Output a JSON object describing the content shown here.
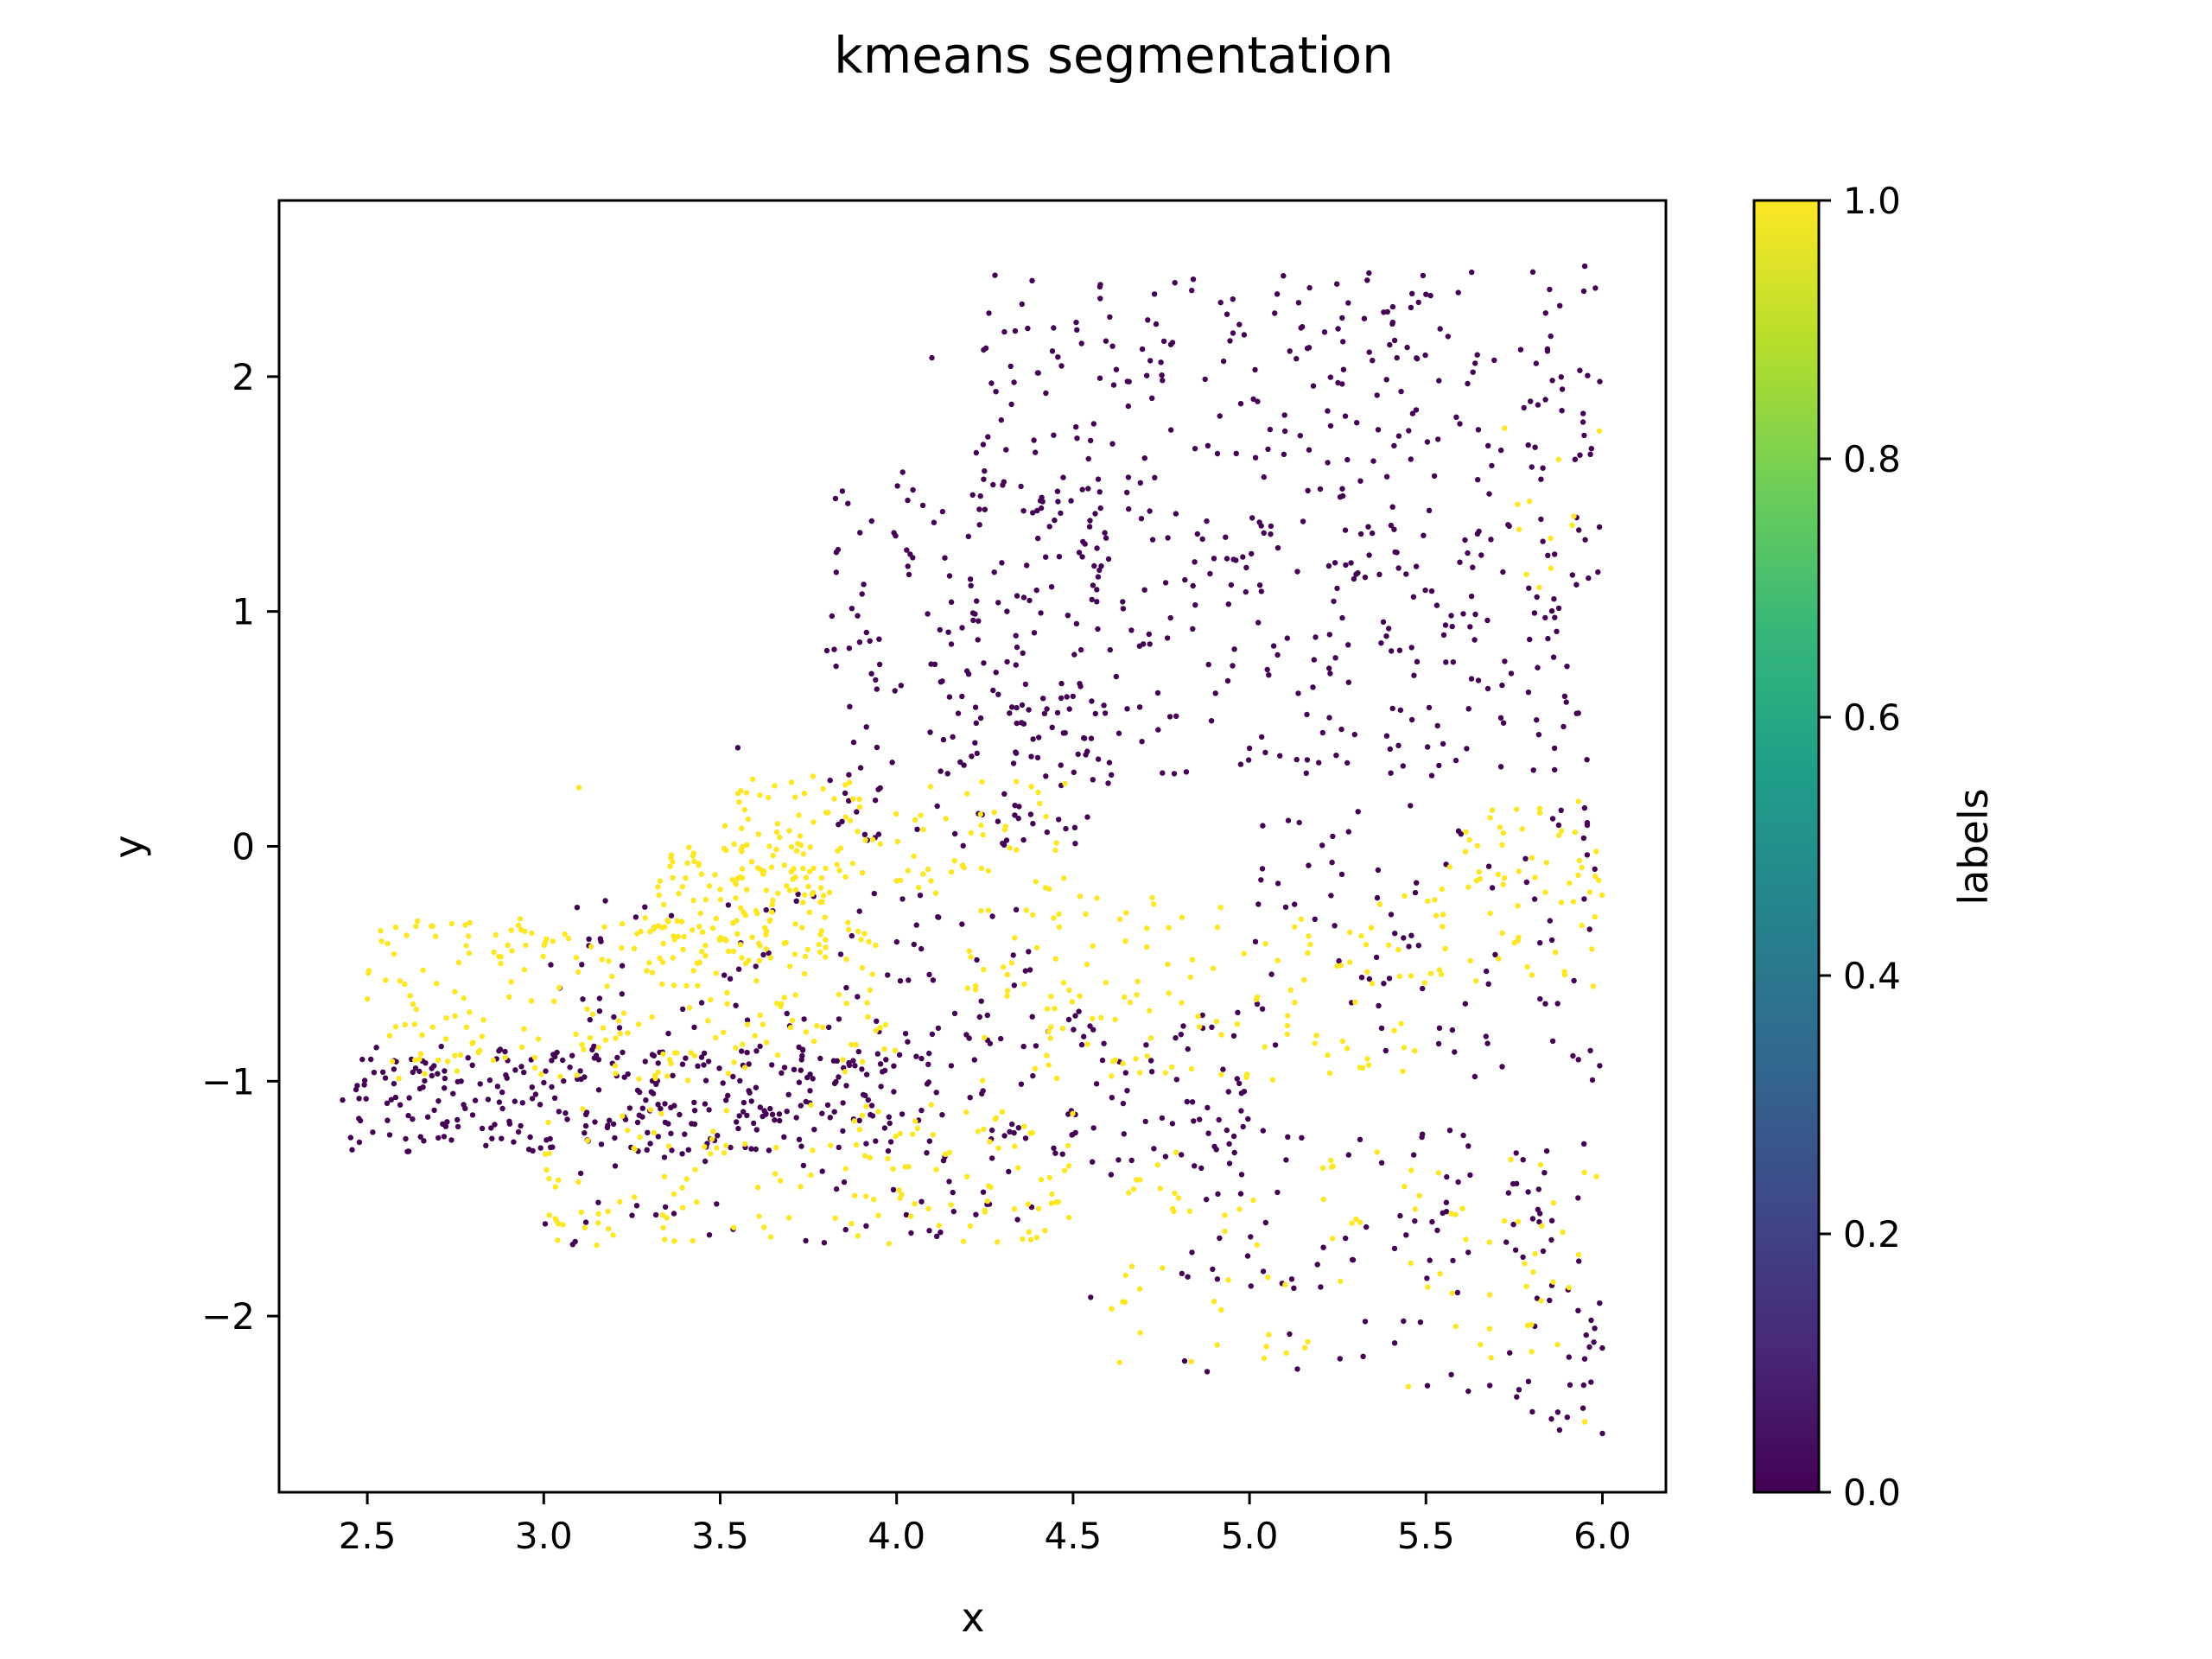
{
  "chart_data": {
    "type": "scatter",
    "title": "kmeans segmentation",
    "xlabel": "x",
    "ylabel": "y",
    "xlim": [
      2.25,
      6.18
    ],
    "ylim": [
      -2.75,
      2.75
    ],
    "x_ticks": [
      2.5,
      3.0,
      3.5,
      4.0,
      4.5,
      5.0,
      5.5,
      6.0
    ],
    "x_tick_labels": [
      "2.5",
      "3.0",
      "3.5",
      "4.0",
      "4.5",
      "5.0",
      "5.5",
      "6.0"
    ],
    "y_ticks": [
      -2,
      -1,
      0,
      1,
      2
    ],
    "y_tick_labels": [
      "−2",
      "−1",
      "0",
      "1",
      "2"
    ],
    "grid": false,
    "colormap": "viridis",
    "colorbar": {
      "label": "labels",
      "range": [
        0.0,
        1.0
      ],
      "ticks": [
        0.0,
        0.2,
        0.4,
        0.6,
        0.8,
        1.0
      ],
      "tick_labels": [
        "0.0",
        "0.2",
        "0.4",
        "0.6",
        "0.8",
        "1.0"
      ],
      "colors": [
        "#440154",
        "#482878",
        "#3e4989",
        "#31688e",
        "#26828e",
        "#1f9e89",
        "#35b779",
        "#6ece58",
        "#b5de2b",
        "#fde725"
      ]
    },
    "series": [
      {
        "label_value": 0,
        "color": "#440154",
        "regions": [
          {
            "x": [
              4.2,
              6.0
            ],
            "y": [
              0.3,
              2.45
            ],
            "n": 520
          },
          {
            "x": [
              3.8,
              4.6
            ],
            "y": [
              0.0,
              1.6
            ],
            "n": 180
          },
          {
            "x": [
              2.45,
              4.0
            ],
            "y": [
              -1.3,
              -0.85
            ],
            "n": 300
          },
          {
            "x": [
              3.0,
              4.4
            ],
            "y": [
              -1.7,
              -0.2
            ],
            "n": 160
          },
          {
            "x": [
              4.0,
              5.0
            ],
            "y": [
              -1.4,
              -0.7
            ],
            "n": 110
          },
          {
            "x": [
              5.0,
              6.0
            ],
            "y": [
              -1.0,
              0.2
            ],
            "n": 90
          },
          {
            "x": [
              4.8,
              6.0
            ],
            "y": [
              -2.3,
              -1.2
            ],
            "n": 90
          },
          {
            "x": [
              5.7,
              6.0
            ],
            "y": [
              -2.5,
              -1.3
            ],
            "n": 30
          }
        ],
        "points": [
          [
            2.43,
            -1.08
          ],
          [
            6.0,
            -2.5
          ],
          [
            5.62,
            -2.32
          ],
          [
            4.55,
            -1.92
          ],
          [
            3.55,
            0.42
          ],
          [
            4.1,
            2.08
          ],
          [
            5.95,
            2.47
          ],
          [
            5.5,
            2.35
          ]
        ]
      },
      {
        "label_value": 1,
        "color": "#fde725",
        "regions": [
          {
            "x": [
              2.5,
              4.0
            ],
            "y": [
              -1.0,
              -0.3
            ],
            "n": 230
          },
          {
            "x": [
              3.3,
              3.8
            ],
            "y": [
              -0.5,
              0.0
            ],
            "n": 120
          },
          {
            "x": [
              3.5,
              4.5
            ],
            "y": [
              -0.2,
              0.3
            ],
            "n": 110
          },
          {
            "x": [
              3.0,
              4.5
            ],
            "y": [
              -1.7,
              -1.1
            ],
            "n": 150
          },
          {
            "x": [
              4.2,
              5.5
            ],
            "y": [
              -1.0,
              -0.2
            ],
            "n": 140
          },
          {
            "x": [
              5.5,
              6.0
            ],
            "y": [
              -0.6,
              0.2
            ],
            "n": 70
          },
          {
            "x": [
              4.6,
              6.0
            ],
            "y": [
              -2.2,
              -1.3
            ],
            "n": 90
          },
          {
            "x": [
              5.7,
              6.0
            ],
            "y": [
              1.1,
              1.8
            ],
            "n": 12
          }
        ],
        "points": [
          [
            2.5,
            -0.65
          ],
          [
            3.1,
            0.25
          ],
          [
            5.95,
            -2.45
          ],
          [
            5.45,
            -2.3
          ],
          [
            4.25,
            -1.55
          ]
        ]
      }
    ]
  }
}
